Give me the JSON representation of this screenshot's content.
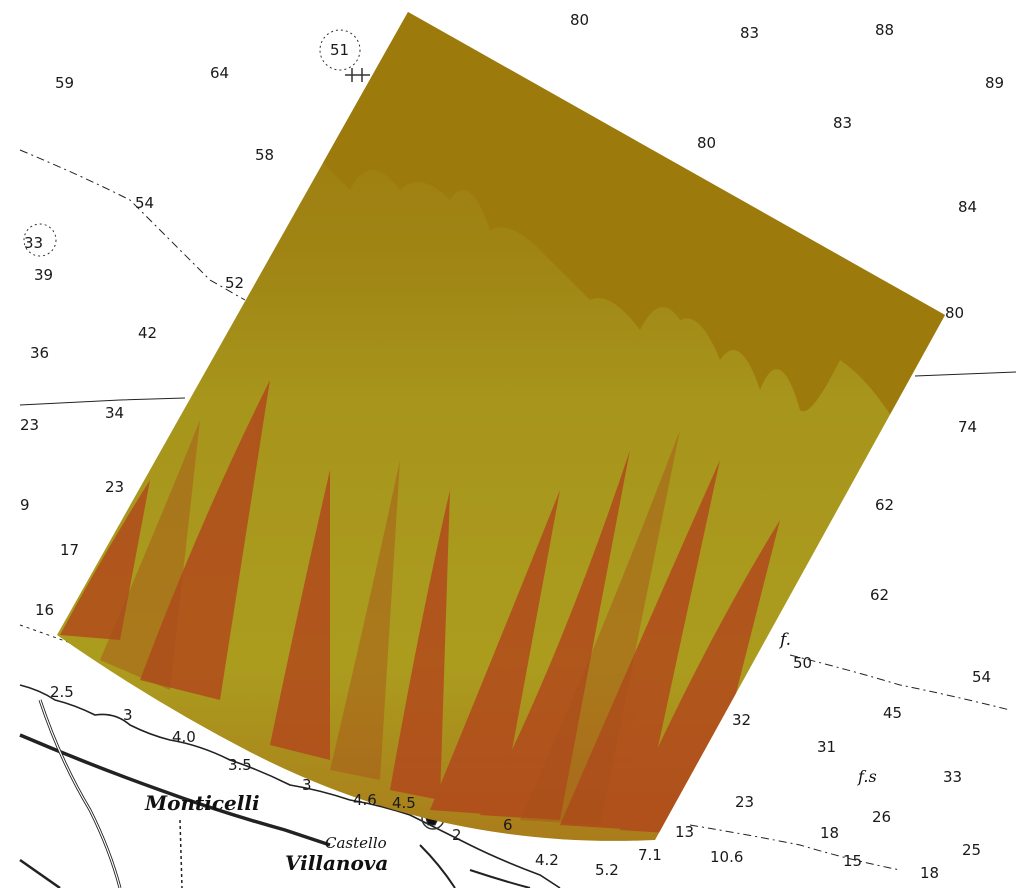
{
  "map": {
    "places": {
      "monticelli": "Monticelli",
      "castello": "Castello",
      "villanova": "Villanova"
    },
    "symbols": {
      "fs_1": "f.",
      "fs_2": "f.s"
    },
    "soundings": [
      "80",
      "83",
      "88",
      "89",
      "59",
      "64",
      "51",
      "80",
      "83",
      "58",
      "54",
      "84",
      "33",
      "39",
      "52",
      "80",
      "42",
      "36",
      "34",
      "23",
      "74",
      "23",
      "9",
      "62",
      "17",
      "62",
      "16",
      "50",
      "54",
      "2.5",
      "3",
      "4.0",
      "45",
      "3.5",
      "32",
      "31",
      "33",
      "3",
      "4.6",
      "4.5",
      "23",
      "26",
      "2",
      "6",
      "13",
      "18",
      "25",
      "7.1",
      "10.6",
      "4.2",
      "5.2",
      "15",
      "18"
    ],
    "colors": {
      "paper": "#ffffff",
      "ink": "#1a1a1a",
      "overlay_base": "#a27d10",
      "overlay_mid": "#a89a1c",
      "overlay_hot": "#b5401a"
    }
  }
}
